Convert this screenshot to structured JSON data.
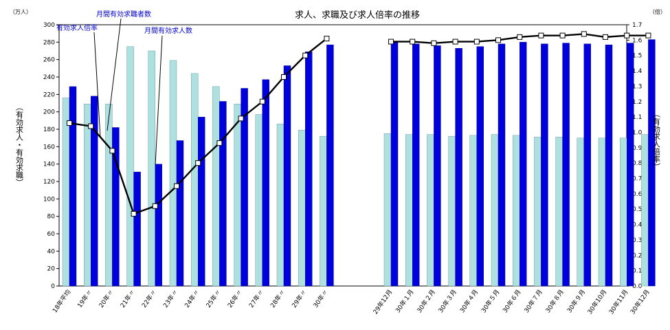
{
  "chart_data": {
    "type": "bar",
    "title": "求人、求職及び求人倍率の推移",
    "left_unit": "（万人）",
    "right_unit": "（倍）",
    "ylabel_left": "（有効求人・有効求職）",
    "ylabel_right": "（有効求人倍率）",
    "ylim_left": [
      0,
      300
    ],
    "ylim_right": [
      0,
      1.7
    ],
    "yticks_left": [
      0,
      20,
      40,
      60,
      80,
      100,
      120,
      140,
      160,
      180,
      200,
      220,
      240,
      260,
      280,
      300
    ],
    "yticks_right": [
      "0.0",
      "0.1",
      "0.2",
      "0.3",
      "0.4",
      "0.5",
      "0.6",
      "0.7",
      "0.8",
      "0.9",
      "1.0",
      "1.1",
      "1.2",
      "1.3",
      "1.4",
      "1.5",
      "1.6",
      "1.7"
    ],
    "categories": [
      "18年平均",
      "19年〃",
      "20年〃",
      "21年〃",
      "22年〃",
      "23年〃",
      "24年〃",
      "25年〃",
      "26年〃",
      "27年〃",
      "28年〃",
      "29年〃",
      "30年〃",
      "29年12月",
      "30年１月",
      "30年２月",
      "30年３月",
      "30年４月",
      "30年５月",
      "30年６月",
      "30年７月",
      "30年８月",
      "30年９月",
      "30年10月",
      "30年11月",
      "30年12月"
    ],
    "series": [
      {
        "name": "月間有効求職者数",
        "color": "#aee0e0",
        "values": [
          216,
          209,
          209,
          275,
          270,
          259,
          244,
          229,
          209,
          197,
          186,
          179,
          172,
          175,
          174,
          174,
          172,
          173,
          174,
          173,
          171,
          171,
          170,
          170,
          170,
          174
        ]
      },
      {
        "name": "月間有効求人数",
        "color": "#0000dd",
        "values": [
          229,
          218,
          182,
          131,
          140,
          167,
          194,
          212,
          227,
          237,
          253,
          269,
          277,
          280,
          278,
          276,
          273,
          275,
          278,
          280,
          278,
          279,
          278,
          277,
          279,
          283
        ]
      },
      {
        "name": "有効求人倍率",
        "type": "line",
        "color": "#000000",
        "values": [
          1.06,
          1.04,
          0.88,
          0.47,
          0.52,
          0.65,
          0.8,
          0.93,
          1.09,
          1.2,
          1.36,
          1.5,
          1.61,
          1.59,
          1.59,
          1.58,
          1.59,
          1.59,
          1.6,
          1.62,
          1.63,
          1.63,
          1.64,
          1.62,
          1.63,
          1.63
        ]
      }
    ],
    "annotations": [
      "有効求人倍率",
      "月間有効求職者数",
      "月間有効求人数"
    ]
  }
}
